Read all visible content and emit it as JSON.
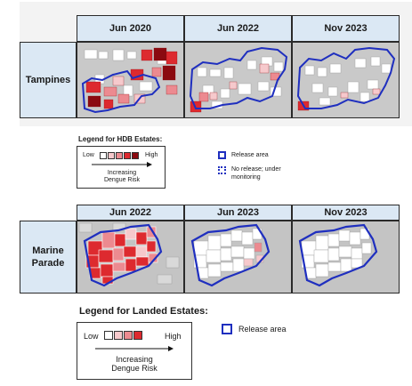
{
  "top_figure": {
    "columns": [
      "Jun 2020",
      "Jun 2022",
      "Nov 2023"
    ],
    "row_label": "Tampines",
    "legend": {
      "title": "Legend for HDB Estates:",
      "low": "Low",
      "high": "High",
      "arrow_label": "Increasing Dengue Risk",
      "release_area": "Release area",
      "no_release": "No release; under monitoring"
    }
  },
  "bottom_figure": {
    "columns": [
      "Jun 2022",
      "Jun 2023",
      "Nov 2023"
    ],
    "row_label": "Marine Parade",
    "legend": {
      "title": "Legend for Landed Estates:",
      "low": "Low",
      "high": "High",
      "arrow_label": "Increasing Dengue Risk",
      "release_area": "Release area"
    }
  },
  "colors": {
    "header_bg": "#dbe8f4",
    "release_blue": "#1f2fbf",
    "risk_1": "#ffffff",
    "risk_2": "#f6c9cc",
    "risk_3": "#ec8a90",
    "risk_4": "#dd2a2f",
    "risk_5": "#8b0a10"
  }
}
